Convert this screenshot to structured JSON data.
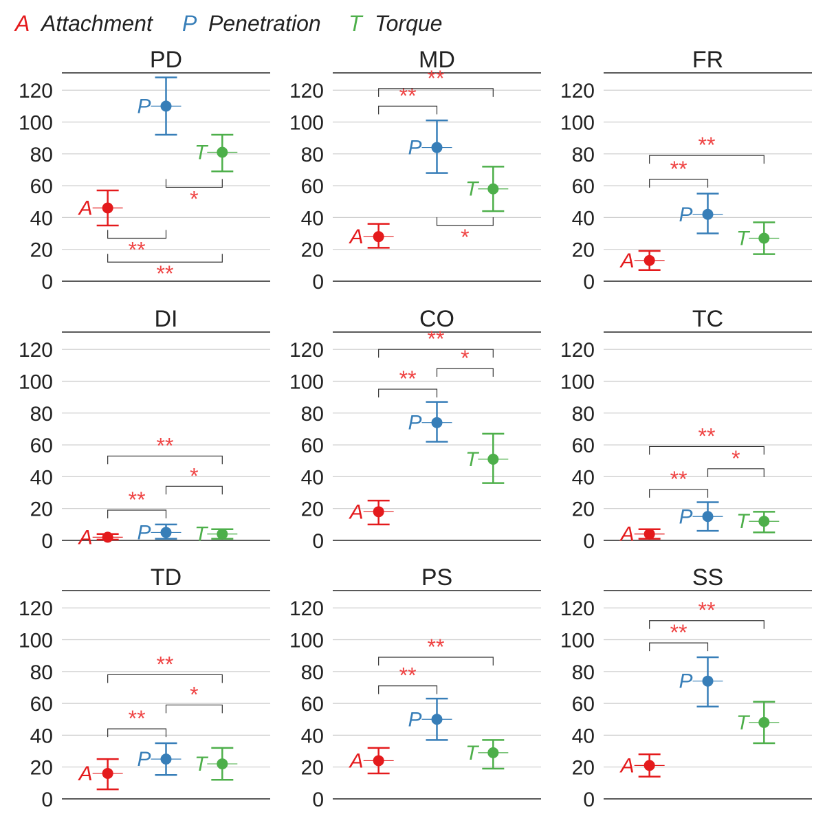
{
  "colors": {
    "A": "#e41a1c",
    "P": "#377eb8",
    "T": "#4daf4a",
    "significance": "#ef4444",
    "grid": "#cccccc",
    "axis": "#222222"
  },
  "legend": [
    {
      "symbol": "A",
      "label": "Attachment",
      "key": "A"
    },
    {
      "symbol": "P",
      "label": "Penetration",
      "key": "P"
    },
    {
      "symbol": "T",
      "label": "Torque",
      "key": "T"
    }
  ],
  "chart_data": [
    {
      "type": "errorbar",
      "title": "PD",
      "ylim": [
        0,
        130
      ],
      "yticks": [
        0,
        20,
        40,
        60,
        80,
        100,
        120
      ],
      "points": [
        {
          "group": "A",
          "mean": 46,
          "low": 35,
          "high": 57
        },
        {
          "group": "P",
          "mean": 110,
          "low": 92,
          "high": 128
        },
        {
          "group": "T",
          "mean": 81,
          "low": 69,
          "high": 92
        }
      ],
      "comparisons": [
        {
          "from": "A",
          "to": "P",
          "level": 27,
          "stars": "**"
        },
        {
          "from": "A",
          "to": "T",
          "level": 12,
          "stars": "**"
        },
        {
          "from": "P",
          "to": "T",
          "level": 59,
          "stars": "*"
        }
      ]
    },
    {
      "type": "errorbar",
      "title": "MD",
      "ylim": [
        0,
        130
      ],
      "yticks": [
        0,
        20,
        40,
        60,
        80,
        100,
        120
      ],
      "points": [
        {
          "group": "A",
          "mean": 28,
          "low": 21,
          "high": 36
        },
        {
          "group": "P",
          "mean": 84,
          "low": 68,
          "high": 101
        },
        {
          "group": "T",
          "mean": 58,
          "low": 44,
          "high": 72
        }
      ],
      "comparisons": [
        {
          "from": "A",
          "to": "P",
          "level": 110,
          "stars": "**"
        },
        {
          "from": "A",
          "to": "T",
          "level": 121,
          "stars": "**"
        },
        {
          "from": "P",
          "to": "T",
          "level": 35,
          "stars": "*"
        }
      ]
    },
    {
      "type": "errorbar",
      "title": "FR",
      "ylim": [
        0,
        130
      ],
      "yticks": [
        0,
        20,
        40,
        60,
        80,
        100,
        120
      ],
      "points": [
        {
          "group": "A",
          "mean": 13,
          "low": 7,
          "high": 19
        },
        {
          "group": "P",
          "mean": 42,
          "low": 30,
          "high": 55
        },
        {
          "group": "T",
          "mean": 27,
          "low": 17,
          "high": 37
        }
      ],
      "comparisons": [
        {
          "from": "A",
          "to": "P",
          "level": 64,
          "stars": "**"
        },
        {
          "from": "A",
          "to": "T",
          "level": 79,
          "stars": "**"
        }
      ]
    },
    {
      "type": "errorbar",
      "title": "DI",
      "ylim": [
        0,
        130
      ],
      "yticks": [
        0,
        20,
        40,
        60,
        80,
        100,
        120
      ],
      "points": [
        {
          "group": "A",
          "mean": 2,
          "low": 0.5,
          "high": 4
        },
        {
          "group": "P",
          "mean": 5,
          "low": 1,
          "high": 10
        },
        {
          "group": "T",
          "mean": 4,
          "low": 1,
          "high": 7
        }
      ],
      "comparisons": [
        {
          "from": "A",
          "to": "P",
          "level": 19,
          "stars": "**"
        },
        {
          "from": "A",
          "to": "T",
          "level": 53,
          "stars": "**"
        },
        {
          "from": "P",
          "to": "T",
          "level": 34,
          "stars": "*"
        }
      ]
    },
    {
      "type": "errorbar",
      "title": "CO",
      "ylim": [
        0,
        130
      ],
      "yticks": [
        0,
        20,
        40,
        60,
        80,
        100,
        120
      ],
      "points": [
        {
          "group": "A",
          "mean": 18,
          "low": 10,
          "high": 25
        },
        {
          "group": "P",
          "mean": 74,
          "low": 62,
          "high": 87
        },
        {
          "group": "T",
          "mean": 51,
          "low": 36,
          "high": 67
        }
      ],
      "comparisons": [
        {
          "from": "A",
          "to": "P",
          "level": 95,
          "stars": "**"
        },
        {
          "from": "A",
          "to": "T",
          "level": 120,
          "stars": "**"
        },
        {
          "from": "P",
          "to": "T",
          "level": 108,
          "stars": "*"
        }
      ]
    },
    {
      "type": "errorbar",
      "title": "TC",
      "ylim": [
        0,
        130
      ],
      "yticks": [
        0,
        20,
        40,
        60,
        80,
        100,
        120
      ],
      "points": [
        {
          "group": "A",
          "mean": 4,
          "low": 1,
          "high": 7
        },
        {
          "group": "P",
          "mean": 15,
          "low": 6,
          "high": 24
        },
        {
          "group": "T",
          "mean": 12,
          "low": 5,
          "high": 18
        }
      ],
      "comparisons": [
        {
          "from": "A",
          "to": "P",
          "level": 32,
          "stars": "**"
        },
        {
          "from": "A",
          "to": "T",
          "level": 59,
          "stars": "**"
        },
        {
          "from": "P",
          "to": "T",
          "level": 45,
          "stars": "*"
        }
      ]
    },
    {
      "type": "errorbar",
      "title": "TD",
      "ylim": [
        0,
        130
      ],
      "yticks": [
        0,
        20,
        40,
        60,
        80,
        100,
        120
      ],
      "points": [
        {
          "group": "A",
          "mean": 16,
          "low": 6,
          "high": 25
        },
        {
          "group": "P",
          "mean": 25,
          "low": 15,
          "high": 35
        },
        {
          "group": "T",
          "mean": 22,
          "low": 12,
          "high": 32
        }
      ],
      "comparisons": [
        {
          "from": "A",
          "to": "P",
          "level": 44,
          "stars": "**"
        },
        {
          "from": "A",
          "to": "T",
          "level": 78,
          "stars": "**"
        },
        {
          "from": "P",
          "to": "T",
          "level": 59,
          "stars": "*"
        }
      ]
    },
    {
      "type": "errorbar",
      "title": "PS",
      "ylim": [
        0,
        130
      ],
      "yticks": [
        0,
        20,
        40,
        60,
        80,
        100,
        120
      ],
      "points": [
        {
          "group": "A",
          "mean": 24,
          "low": 16,
          "high": 32
        },
        {
          "group": "P",
          "mean": 50,
          "low": 37,
          "high": 63
        },
        {
          "group": "T",
          "mean": 29,
          "low": 19,
          "high": 37
        }
      ],
      "comparisons": [
        {
          "from": "A",
          "to": "P",
          "level": 71,
          "stars": "**"
        },
        {
          "from": "A",
          "to": "T",
          "level": 89,
          "stars": "**"
        }
      ]
    },
    {
      "type": "errorbar",
      "title": "SS",
      "ylim": [
        0,
        130
      ],
      "yticks": [
        0,
        20,
        40,
        60,
        80,
        100,
        120
      ],
      "points": [
        {
          "group": "A",
          "mean": 21,
          "low": 14,
          "high": 28
        },
        {
          "group": "P",
          "mean": 74,
          "low": 58,
          "high": 89
        },
        {
          "group": "T",
          "mean": 48,
          "low": 35,
          "high": 61
        }
      ],
      "comparisons": [
        {
          "from": "A",
          "to": "P",
          "level": 98,
          "stars": "**"
        },
        {
          "from": "A",
          "to": "T",
          "level": 112,
          "stars": "**"
        }
      ]
    }
  ]
}
